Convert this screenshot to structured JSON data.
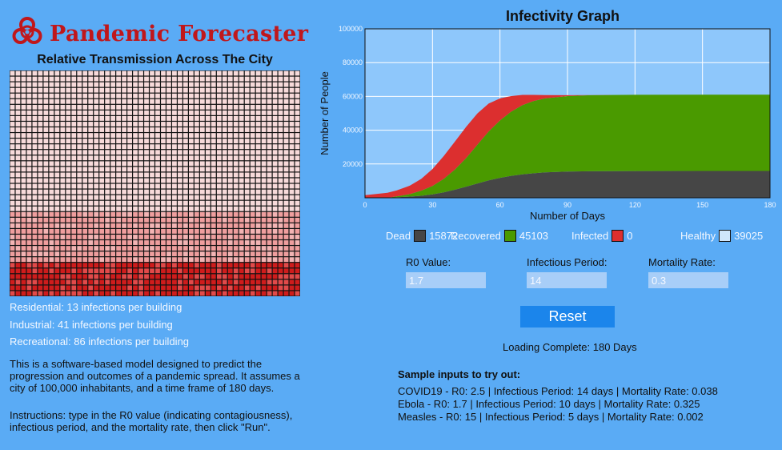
{
  "app": {
    "logo_text": "Pandemic Forecaster",
    "grid_title": "Relative Transmission Across The City"
  },
  "stats": {
    "residential": "Residential: 13 infections per building",
    "industrial": "Industrial: 41 infections per building",
    "recreational": "Recreational: 86 infections per building"
  },
  "description": {
    "p1": "This is a software-based model designed to predict the progression and outcomes of a pandemic spread. It assumes a city of 100,000 inhabitants, and a time frame of 180 days.",
    "p2": "Instructions: type in the R0 value (indicating contagiousness), infectious period, and the mortality rate, then click \"Run\"."
  },
  "colors": {
    "background": "#5aabf5",
    "plot_bg": "#8ec7fb",
    "dead": "#464646",
    "recovered": "#4a9a00",
    "infected": "#dc2f2f",
    "healthy": "#cfe6fb",
    "residential": "#f7dada",
    "industrial": "#ef9e9e",
    "recreational": "#cf1c1c",
    "logo": "#c0171b",
    "button": "#1b85eb"
  },
  "legend": {
    "dead_label": "Dead",
    "dead_value": "15872",
    "recovered_label": "Recovered",
    "recovered_value": "45103",
    "infected_label": "Infected",
    "infected_value": "0",
    "healthy_label": "Healthy",
    "healthy_value": "39025"
  },
  "inputs": {
    "r0_label": "R0 Value:",
    "r0_value": "1.7",
    "period_label": "Infectious Period:",
    "period_value": "14",
    "mortality_label": "Mortality Rate:",
    "mortality_value": "0.3"
  },
  "reset_label": "Reset",
  "status": "Loading Complete: 180 Days",
  "samples": {
    "title": "Sample inputs to try out:",
    "items": [
      "COVID19 - R0: 2.5 | Infectious Period: 14 days | Mortality Rate: 0.038",
      "Ebola - R0: 1.7 | Infectious Period: 10 days | Mortality Rate: 0.325",
      "Measles - R0: 15 | Infectious Period: 5 days | Mortality Rate: 0.002"
    ]
  },
  "chart_data": {
    "type": "area",
    "title": "Infectivity Graph",
    "xlabel": "Number of Days",
    "ylabel": "Number of People",
    "xlim": [
      0,
      180
    ],
    "ylim": [
      0,
      100000
    ],
    "x_ticks": [
      0,
      30,
      60,
      90,
      120,
      150,
      180
    ],
    "x_tick_labels": [
      "0",
      "30",
      "60",
      "90",
      "120",
      "150",
      "180"
    ],
    "y_ticks": [
      20000,
      40000,
      60000,
      80000,
      100000
    ],
    "y_tick_labels": [
      "20000",
      "40000",
      "60000",
      "80000",
      "100000"
    ],
    "grid": true,
    "x": [
      0,
      10,
      14,
      20,
      25,
      30,
      35,
      40,
      45,
      50,
      55,
      60,
      65,
      70,
      75,
      80,
      90,
      100,
      120,
      150,
      180
    ],
    "series": [
      {
        "name": "Dead",
        "values": [
          0,
          0,
          300,
          700,
          1200,
          2000,
          3200,
          4800,
          6600,
          8500,
          10300,
          11800,
          13000,
          13900,
          14500,
          15000,
          15500,
          15700,
          15850,
          15872,
          15872
        ]
      },
      {
        "name": "Recovered",
        "values": [
          0,
          0,
          500,
          1500,
          3000,
          5000,
          8000,
          12000,
          17000,
          23000,
          29000,
          34000,
          38000,
          41000,
          42800,
          43800,
          44700,
          45000,
          45100,
          45103,
          45103
        ]
      },
      {
        "name": "Infected",
        "values": [
          1500,
          3000,
          3500,
          5000,
          7000,
          10000,
          13500,
          16500,
          18500,
          18500,
          16500,
          13000,
          9200,
          6000,
          3600,
          2000,
          500,
          100,
          0,
          0,
          0
        ]
      }
    ]
  }
}
